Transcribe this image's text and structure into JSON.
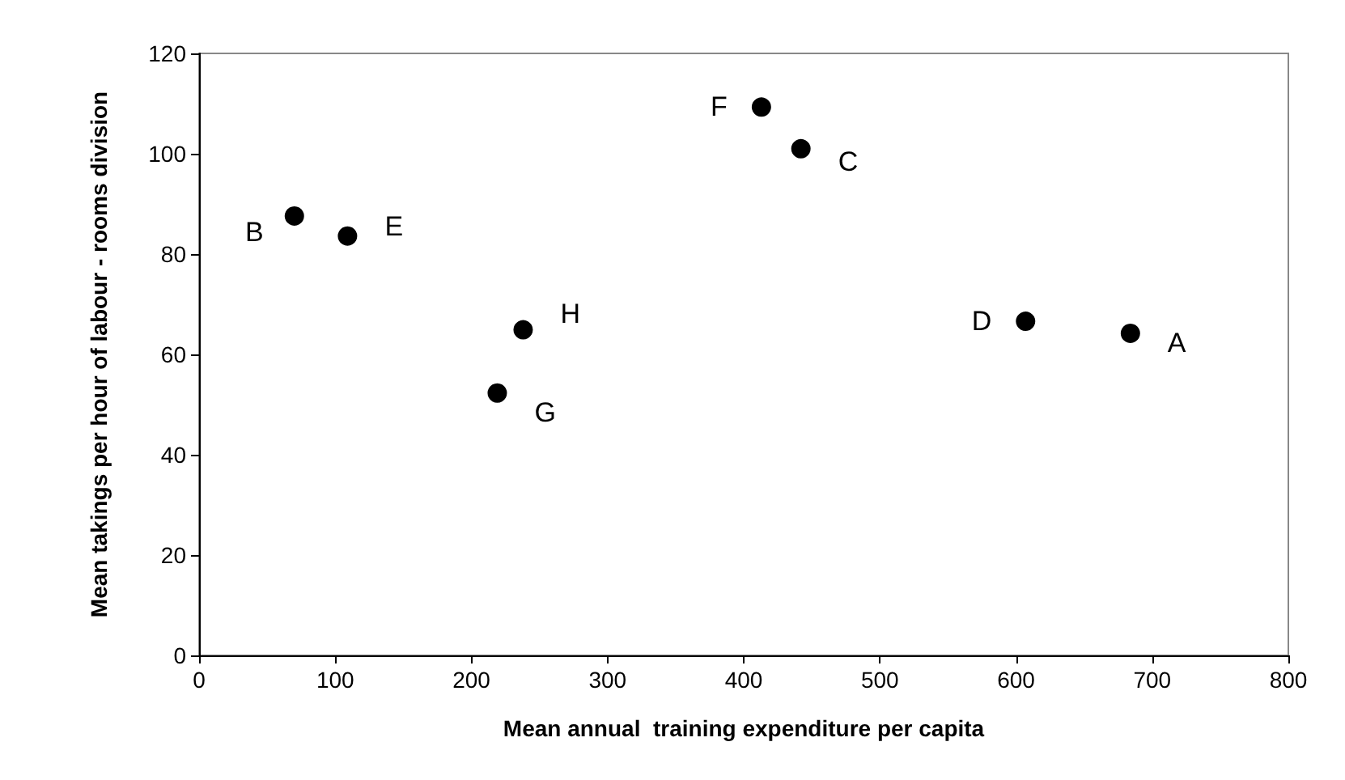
{
  "chart_data": {
    "type": "scatter",
    "xlabel": "Mean annual  training expenditure per capita",
    "ylabel": "Mean takings per hour of labour - rooms division",
    "x": [
      70,
      109,
      238,
      219,
      413,
      442,
      607,
      684
    ],
    "values": [
      87.6,
      83.6,
      64.9,
      52.3,
      109.3,
      101,
      66.6,
      64.2
    ],
    "value_labels": [
      "B",
      "E",
      "H",
      "G",
      "F",
      "C",
      "D",
      "A"
    ],
    "color": "#000000",
    "marker": "circle",
    "grid": false,
    "xlim": [
      0,
      800
    ],
    "xticks": [
      0,
      100,
      200,
      300,
      400,
      500,
      600,
      700,
      800
    ],
    "ylim": [
      0,
      120
    ],
    "yticks": [
      0,
      20,
      40,
      60,
      80,
      100,
      120
    ]
  }
}
